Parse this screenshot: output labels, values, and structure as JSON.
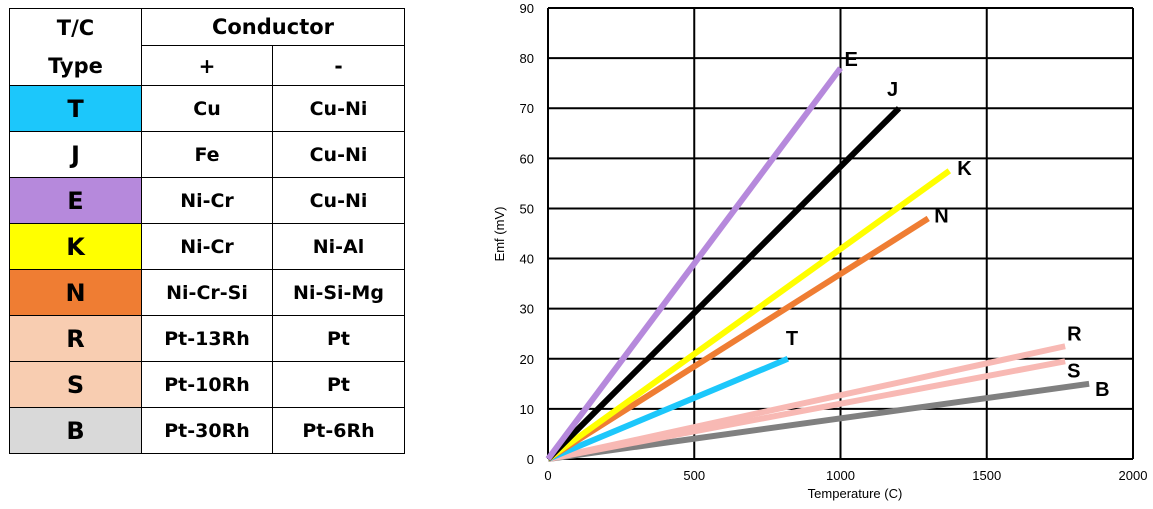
{
  "table": {
    "header_tc_top": "T/C",
    "header_tc_bottom": "Type",
    "header_conductor": "Conductor",
    "header_plus": "+",
    "header_minus": "-",
    "rows": [
      {
        "type": "T",
        "plus": "Cu",
        "minus": "Cu-Ni",
        "color": "#1cc7fb"
      },
      {
        "type": "J",
        "plus": "Fe",
        "minus": "Cu-Ni",
        "color": "#ffffff"
      },
      {
        "type": "E",
        "plus": "Ni-Cr",
        "minus": "Cu-Ni",
        "color": "#b689dc"
      },
      {
        "type": "K",
        "plus": "Ni-Cr",
        "minus": "Ni-Al",
        "color": "#ffff00"
      },
      {
        "type": "N",
        "plus": "Ni-Cr-Si",
        "minus": "Ni-Si-Mg",
        "color": "#ef7d33"
      },
      {
        "type": "R",
        "plus": "Pt-13Rh",
        "minus": "Pt",
        "color": "#f8cdb1"
      },
      {
        "type": "S",
        "plus": "Pt-10Rh",
        "minus": "Pt",
        "color": "#f8cdb1"
      },
      {
        "type": "B",
        "plus": "Pt-30Rh",
        "minus": "Pt-6Rh",
        "color": "#d9d9d9"
      }
    ]
  },
  "chart_data": {
    "type": "line",
    "title": "",
    "xlabel": "Temperature (C)",
    "ylabel": "Emf (mV)",
    "xlim": [
      0,
      2000
    ],
    "ylim": [
      0,
      90
    ],
    "xticks": [
      0,
      500,
      1000,
      1500,
      2000
    ],
    "yticks": [
      0,
      10,
      20,
      30,
      40,
      50,
      60,
      70,
      80,
      90
    ],
    "grid": true,
    "series": [
      {
        "name": "E",
        "color": "#b689dc",
        "x": [
          0,
          1000
        ],
        "y": [
          0,
          78
        ]
      },
      {
        "name": "J",
        "color": "#000000",
        "x": [
          0,
          1200
        ],
        "y": [
          0,
          70
        ]
      },
      {
        "name": "K",
        "color": "#ffff00",
        "x": [
          0,
          1372
        ],
        "y": [
          0,
          57.5
        ]
      },
      {
        "name": "N",
        "color": "#ef7d33",
        "x": [
          0,
          1300
        ],
        "y": [
          0,
          48
        ]
      },
      {
        "name": "T",
        "color": "#1cc7fb",
        "x": [
          0,
          820
        ],
        "y": [
          0,
          20
        ]
      },
      {
        "name": "R",
        "color": "#f8b9b4",
        "x": [
          0,
          1768
        ],
        "y": [
          0,
          22.5
        ]
      },
      {
        "name": "S",
        "color": "#f8b9b4",
        "x": [
          0,
          1768
        ],
        "y": [
          0,
          19.5
        ]
      },
      {
        "name": "B",
        "color": "#808080",
        "x": [
          0,
          1850
        ],
        "y": [
          0,
          15
        ]
      }
    ]
  }
}
